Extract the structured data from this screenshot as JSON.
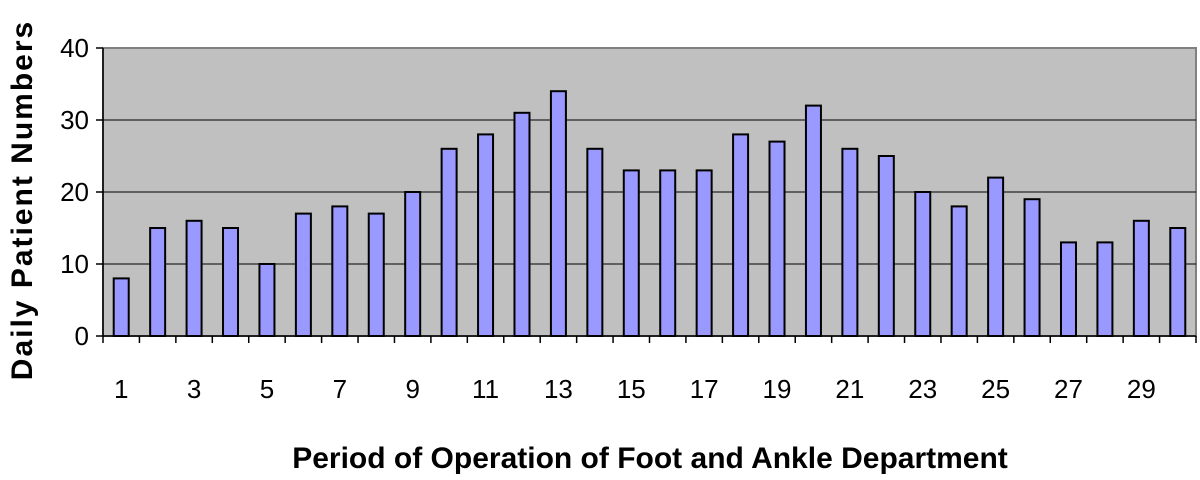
{
  "chart_data": {
    "type": "bar",
    "title": "",
    "xlabel": "Period of Operation of Foot and Ankle Department",
    "ylabel": "Daily Patient Numbers",
    "ylim": [
      0,
      40
    ],
    "yticks": [
      0,
      10,
      20,
      30,
      40
    ],
    "grid": true,
    "legend": "none",
    "colors": {
      "plot_background": "#c0c0c0",
      "bar_fill": "#9999ff",
      "bar_stroke": "#000000",
      "gridline": "#000000"
    },
    "categories": [
      1,
      2,
      3,
      4,
      5,
      6,
      7,
      8,
      9,
      10,
      11,
      12,
      13,
      14,
      15,
      16,
      17,
      18,
      19,
      20,
      21,
      22,
      23,
      24,
      25,
      26,
      27,
      28,
      29,
      30
    ],
    "xtick_labels": [
      "1",
      "3",
      "5",
      "7",
      "9",
      "11",
      "13",
      "15",
      "17",
      "19",
      "21",
      "23",
      "25",
      "27",
      "29"
    ],
    "values": [
      8,
      15,
      16,
      15,
      10,
      17,
      18,
      17,
      20,
      26,
      28,
      31,
      34,
      26,
      23,
      23,
      23,
      28,
      27,
      32,
      26,
      25,
      20,
      18,
      22,
      19,
      13,
      13,
      16,
      15
    ]
  }
}
